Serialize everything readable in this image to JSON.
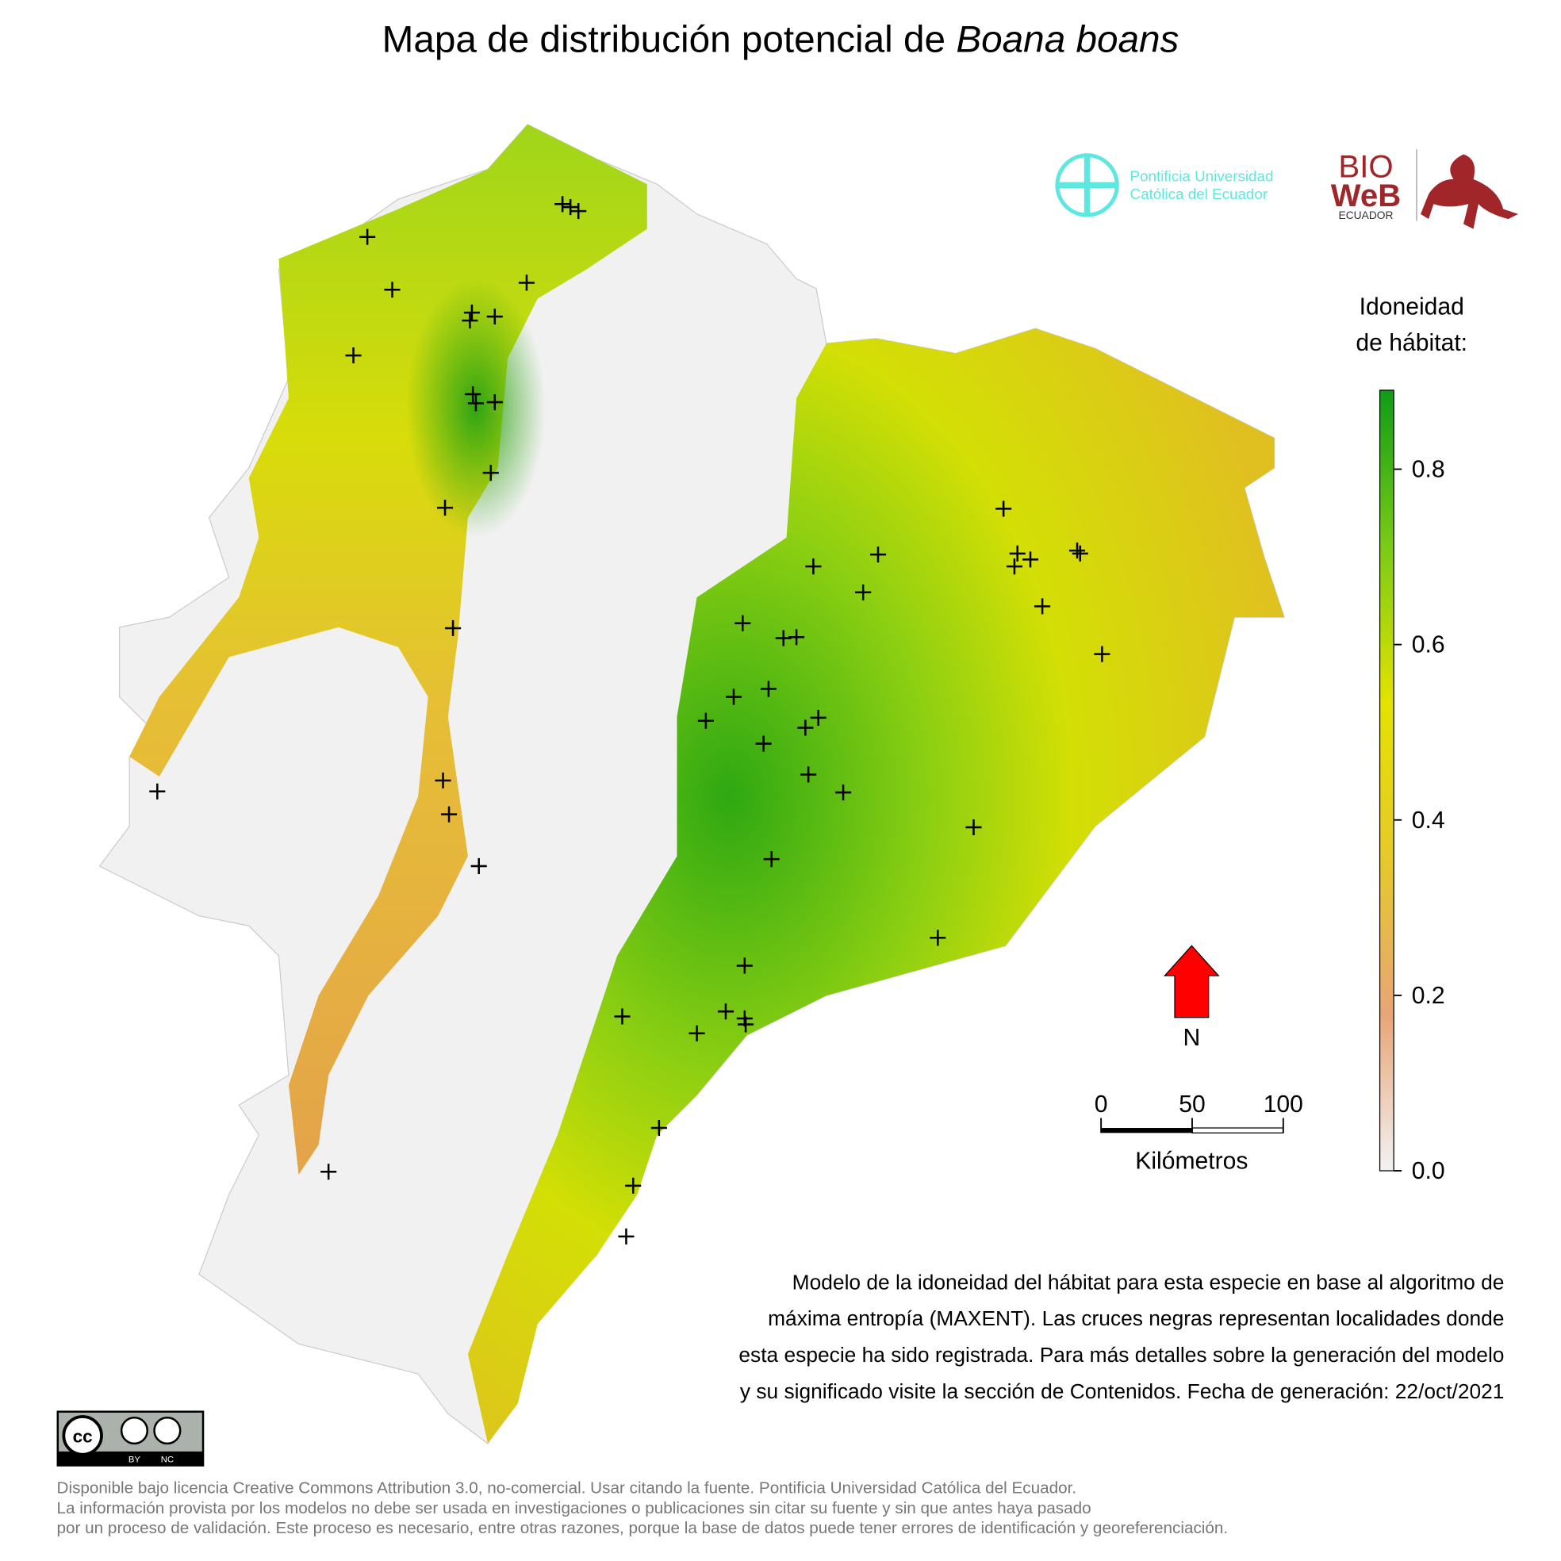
{
  "title": {
    "text": "Mapa de distribución potencial de",
    "species": "Boana boans"
  },
  "logos": {
    "university": [
      "Pontificia Universidad",
      "Católica del Ecuador"
    ],
    "bioweb": [
      "BIO",
      "WeB",
      "ECUADOR"
    ]
  },
  "chart_data": {
    "type": "colorbar",
    "title": [
      "Idoneidad",
      "de hábitat:"
    ],
    "ylim": [
      0,
      0.89
    ],
    "yticks": [
      {
        "value": 0,
        "label": "0.0"
      },
      0.2,
      0.4,
      0.6,
      0.8
    ],
    "colors": [
      "#f2f2f2",
      "#e8a577",
      "#e6c92a",
      "#e3e300",
      "#7acb16",
      "#0f9c16"
    ]
  },
  "north": {
    "label": "N"
  },
  "scale_bar": {
    "xlim": [
      0,
      100
    ],
    "xticks": [
      0,
      50,
      100
    ],
    "unit": "Kilómetros"
  },
  "description": [
    "Modelo de la idoneidad del hábitat para esta especie en base al algoritmo de",
    "máxima entropía (MAXENT). Las cruces negras representan localidades donde",
    "esta especie ha sido registrada. Para más detalles sobre la generación del modelo",
    "y su significado visite la sección de Contenidos. Fecha de generación: 22/oct/2021"
  ],
  "license": {
    "badge": [
      "BY",
      "NC"
    ],
    "lines": [
      "Disponible bajo licencia Creative Commons Attribution 3.0, no-comercial. Usar citando la fuente. Pontificia Universidad Católica del Ecuador.",
      "La información provista por los modelos no debe ser usada en investigaciones o publicaciones sin citar su fuente y sin que antes haya pasado",
      "por un proceso de validación. Este proceso es necesario, entre otras razones, porque la base de datos puede tener errores de identificación y georeferenciación."
    ]
  }
}
